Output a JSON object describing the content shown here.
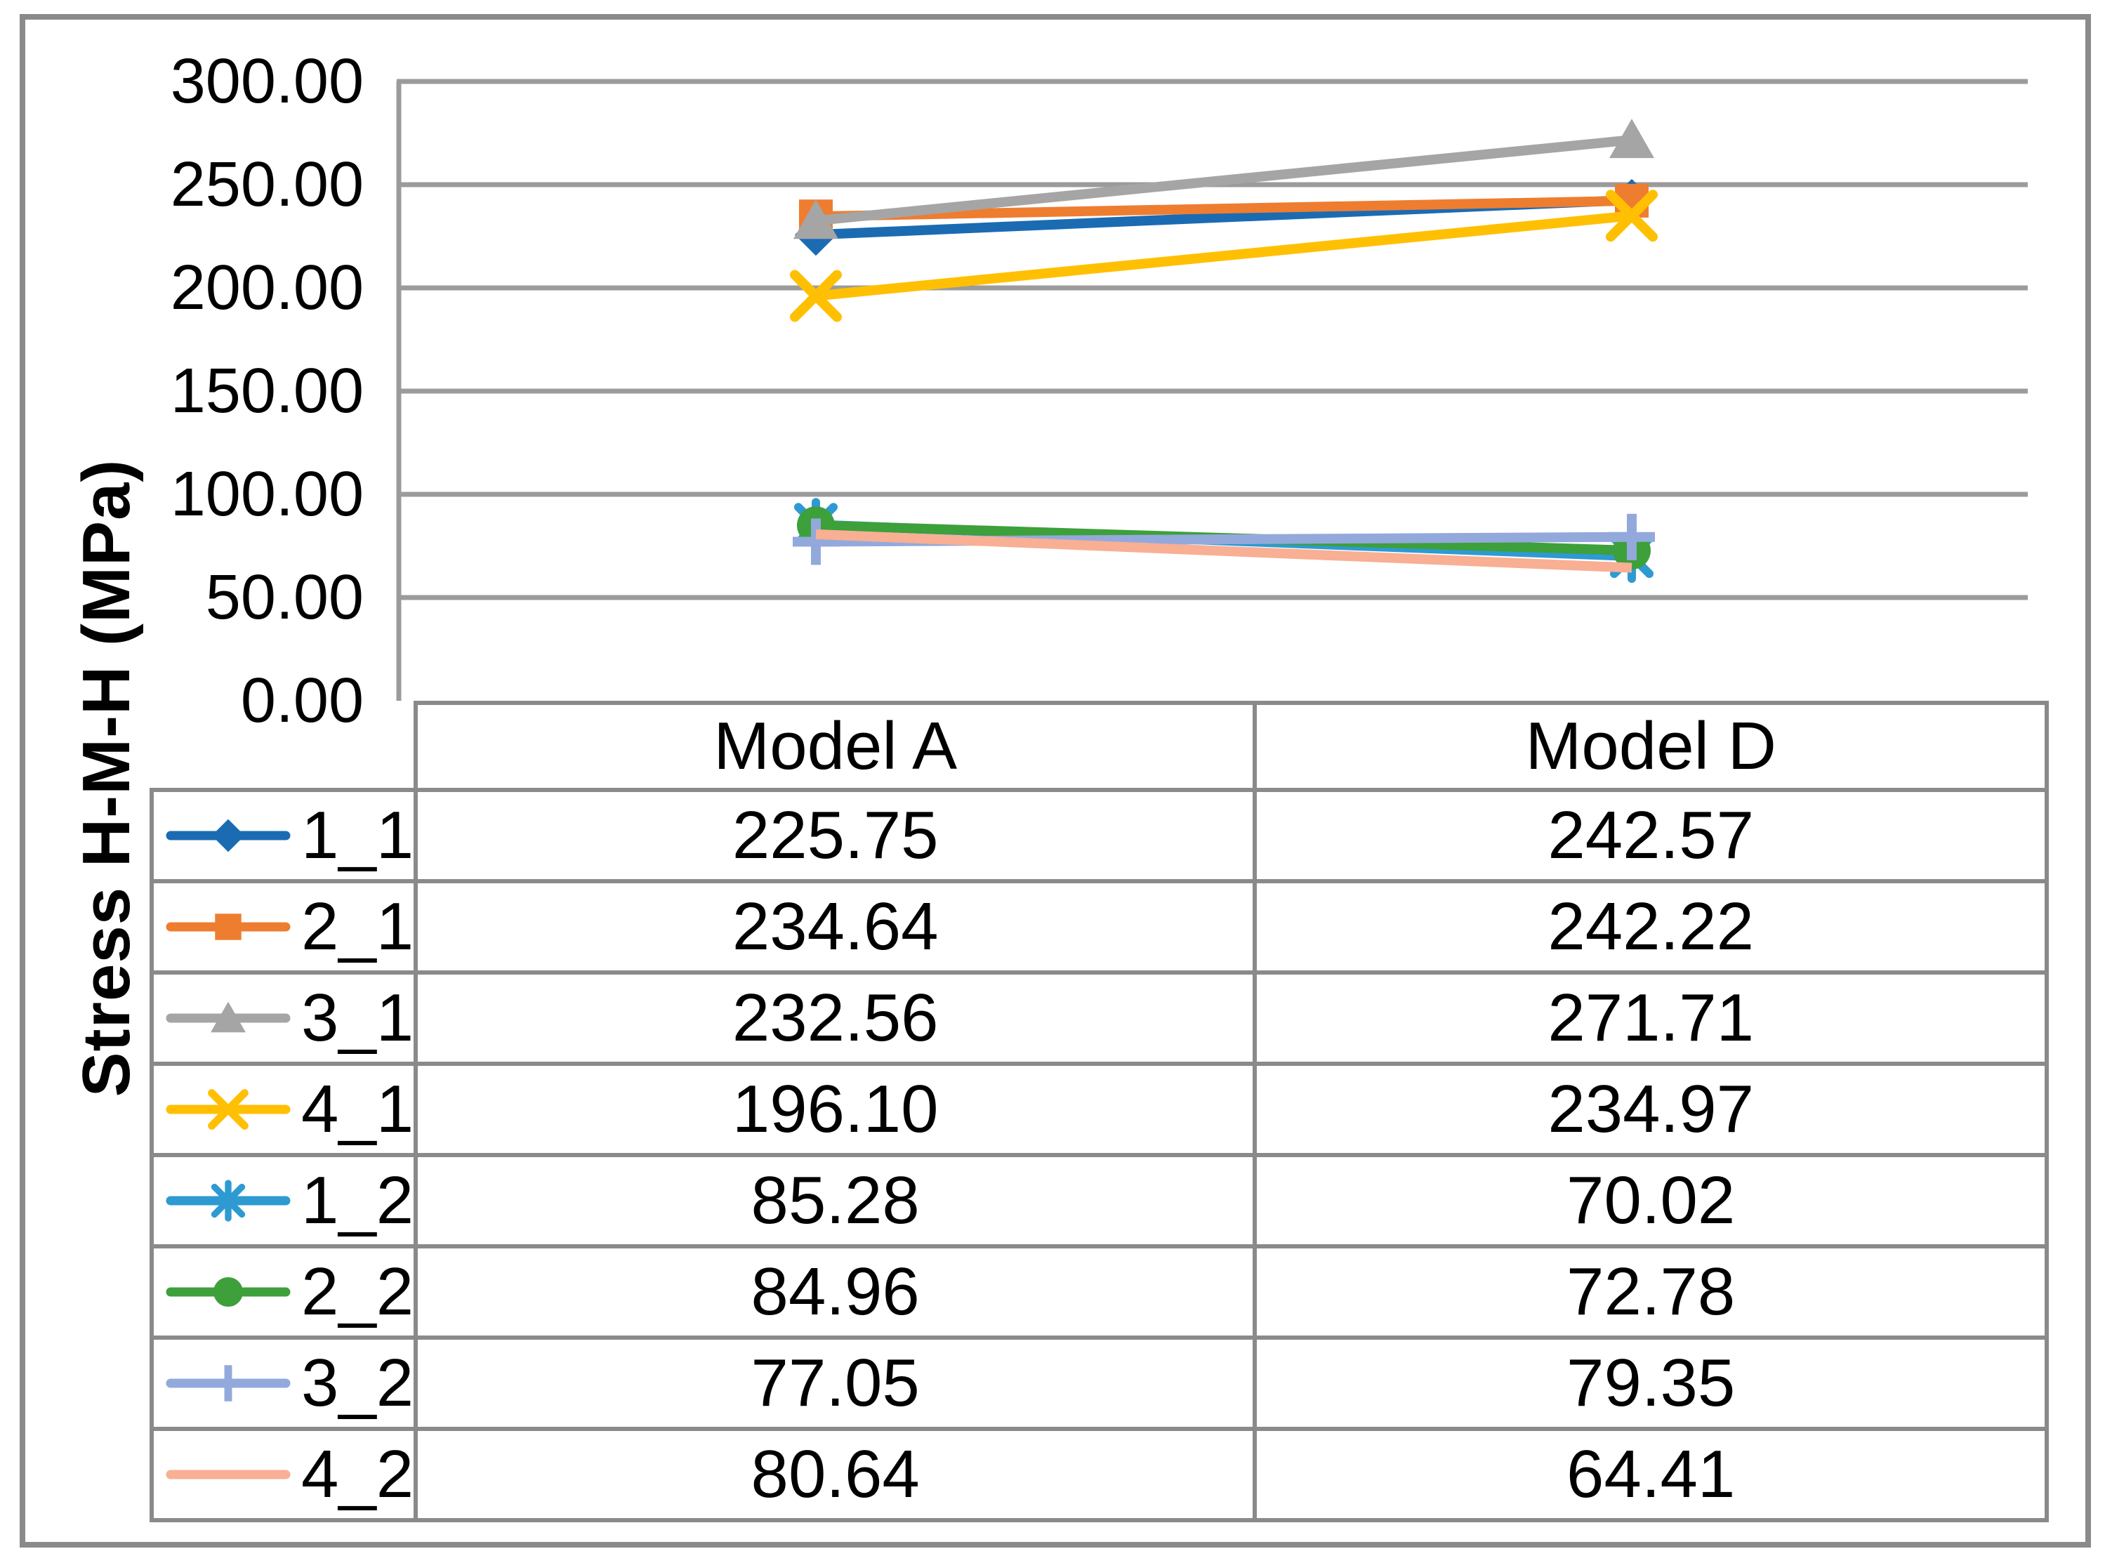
{
  "chart_data": {
    "type": "line",
    "title": "",
    "xlabel": "",
    "ylabel": "Stress H-M-H (MPa)",
    "categories": [
      "Model A",
      "Model D"
    ],
    "ylim": [
      0,
      300
    ],
    "ytick_step": 50,
    "ytick_labels": [
      "300.00",
      "250.00",
      "200.00",
      "150.00",
      "100.00",
      "50.00",
      "0.00"
    ],
    "grid": true,
    "legend_position": "data-table-left-column",
    "axis_line_color": "#9B9B9B",
    "gridline_color": "#9B9B9B",
    "table_border_color": "#8A8A8A",
    "series": [
      {
        "name": "1_1",
        "marker": "diamond",
        "color": "#1B6BB3",
        "values": [
          225.75,
          242.57
        ],
        "values_formatted": [
          "225.75",
          "242.57"
        ]
      },
      {
        "name": "2_1",
        "marker": "square",
        "color": "#EE7D30",
        "values": [
          234.64,
          242.22
        ],
        "values_formatted": [
          "234.64",
          "242.22"
        ]
      },
      {
        "name": "3_1",
        "marker": "triangle",
        "color": "#A5A5A5",
        "values": [
          232.56,
          271.71
        ],
        "values_formatted": [
          "232.56",
          "271.71"
        ]
      },
      {
        "name": "4_1",
        "marker": "x",
        "color": "#FFC003",
        "values": [
          196.1,
          234.97
        ],
        "values_formatted": [
          "196.10",
          "234.97"
        ]
      },
      {
        "name": "1_2",
        "marker": "asterisk",
        "color": "#2E9AD2",
        "values": [
          85.28,
          70.02
        ],
        "values_formatted": [
          "85.28",
          "70.02"
        ]
      },
      {
        "name": "2_2",
        "marker": "circle",
        "color": "#3DA03A",
        "values": [
          84.96,
          72.78
        ],
        "values_formatted": [
          "84.96",
          "72.78"
        ]
      },
      {
        "name": "3_2",
        "marker": "plus",
        "color": "#93A9DC",
        "values": [
          77.05,
          79.35
        ],
        "values_formatted": [
          "77.05",
          "79.35"
        ]
      },
      {
        "name": "4_2",
        "marker": "none",
        "color": "#F8AF94",
        "values": [
          80.64,
          64.41
        ],
        "values_formatted": [
          "80.64",
          "64.41"
        ]
      }
    ]
  }
}
